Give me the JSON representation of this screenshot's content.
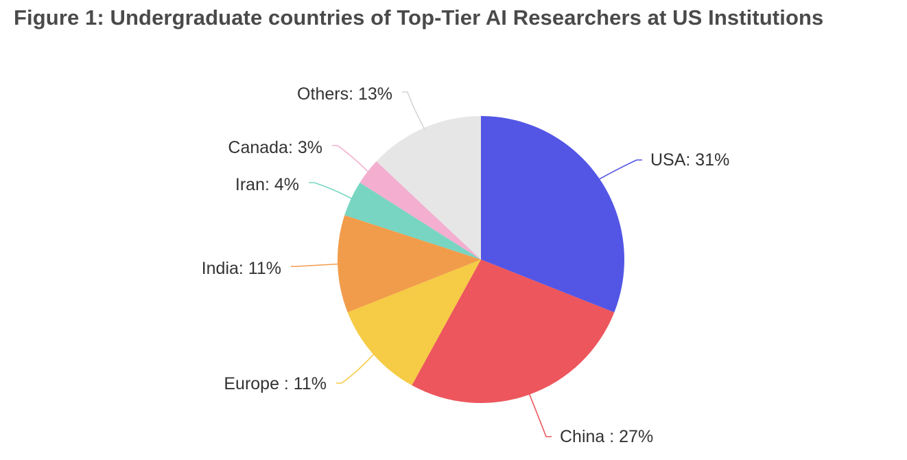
{
  "chart_data": {
    "type": "pie",
    "title": "Figure 1: Undergraduate countries of Top-Tier AI Researchers at US Institutions",
    "unit": "%",
    "slices": [
      {
        "label": "USA: 31%",
        "value": 31,
        "color": "#5356e5"
      },
      {
        "label": "China : 27%",
        "value": 27,
        "color": "#ec565c"
      },
      {
        "label": "Europe : 11%",
        "value": 11,
        "color": "#f6cb45"
      },
      {
        "label": "India: 11%",
        "value": 11,
        "color": "#f19c4b"
      },
      {
        "label": "Iran: 4%",
        "value": 4,
        "color": "#77d5c2"
      },
      {
        "label": "Canada: 3%",
        "value": 3,
        "color": "#f3aed0"
      },
      {
        "label": "Others: 13%",
        "value": 13,
        "color": "#e6e6e6"
      }
    ]
  }
}
